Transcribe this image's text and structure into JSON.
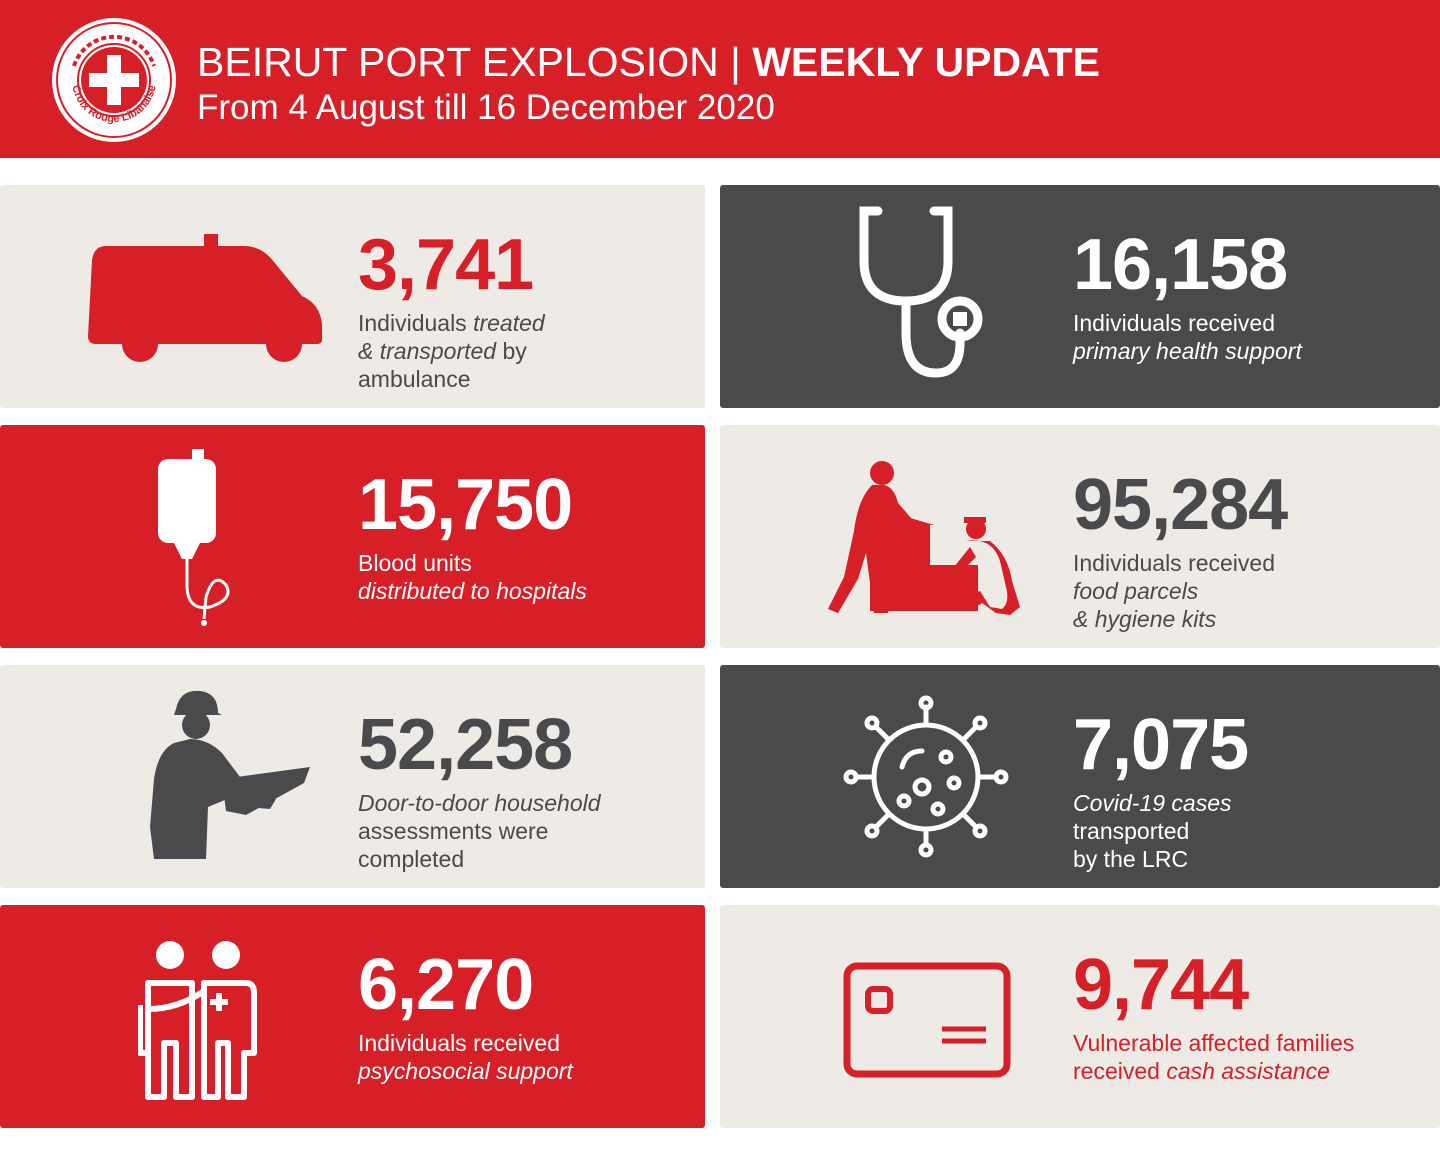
{
  "header": {
    "title_regular": "BEIRUT PORT EXPLOSION |",
    "title_bold": "WEEKLY UPDATE",
    "subtitle": "From 4 August till 16 December 2020",
    "logo_text": "Croix Rouge Libanaise",
    "logo_arabic": "الصليب الأحمر اللبناني"
  },
  "colors": {
    "brand_red": "#d71f27",
    "dark_gray": "#4a4a4c",
    "beige": "#eeebe7"
  },
  "stats": {
    "ambulance": {
      "icon": "ambulance-icon",
      "number": "3,741",
      "line1_a": "Individuals ",
      "line1_b": "treated",
      "line2_a": "& transported",
      "line2_b": " by",
      "line3": "ambulance"
    },
    "primary_health": {
      "icon": "stethoscope-icon",
      "number": "16,158",
      "line1": "Individuals received",
      "line2": "primary health support"
    },
    "blood": {
      "icon": "blood-bag-icon",
      "number": "15,750",
      "line1": "Blood units",
      "line2": "distributed to hospitals"
    },
    "food": {
      "icon": "food-distribution-icon",
      "number": "95,284",
      "line1": "Individuals received",
      "line2": "food parcels",
      "line3": "& hygiene kits"
    },
    "assessments": {
      "icon": "worker-assessment-icon",
      "number": "52,258",
      "line1": "Door-to-door household",
      "line2": "assessments were",
      "line3": "completed"
    },
    "covid": {
      "icon": "virus-icon",
      "number": "7,075",
      "line1": "Covid-19 cases",
      "line2": "transported",
      "line3": "by the LRC"
    },
    "psychosocial": {
      "icon": "psychosocial-support-icon",
      "number": "6,270",
      "line1": "Individuals received",
      "line2": "psychosocial support"
    },
    "cash": {
      "icon": "cash-card-icon",
      "number": "9,744",
      "line1": "Vulnerable affected families",
      "line2_a": "received ",
      "line2_b": "cash assistance"
    }
  }
}
